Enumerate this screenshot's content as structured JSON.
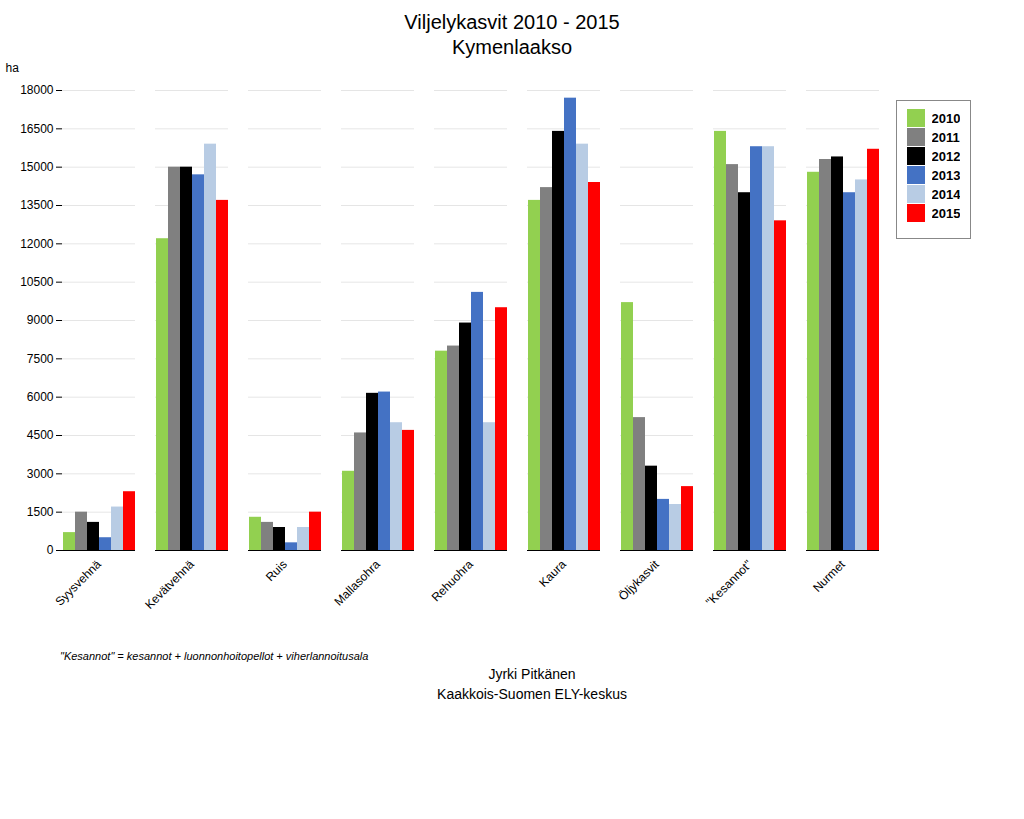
{
  "chart_data": {
    "type": "bar",
    "title": "Viljelykasvit 2010 - 2015\nKymenlaakso",
    "y_label": "ha",
    "categories": [
      "Syysvehnä",
      "Kevätvehnä",
      "Ruis",
      "Mallasohra",
      "Rehuohra",
      "Kaura",
      "Öljykasvit",
      "\"Kesannot\"",
      "Nurmet"
    ],
    "series": [
      {
        "name": "2010",
        "color": "#92D050",
        "values": [
          700,
          12200,
          1300,
          3100,
          7800,
          13700,
          9700,
          16400,
          14800
        ]
      },
      {
        "name": "2011",
        "color": "#808080",
        "values": [
          1500,
          15000,
          1100,
          4600,
          8000,
          14200,
          5200,
          15100,
          15300
        ]
      },
      {
        "name": "2012",
        "color": "#000000",
        "values": [
          1100,
          15000,
          900,
          6150,
          8900,
          16400,
          3300,
          14000,
          15400
        ]
      },
      {
        "name": "2013",
        "color": "#4472C4",
        "values": [
          500,
          14700,
          300,
          6200,
          10100,
          17700,
          2000,
          15800,
          14000
        ]
      },
      {
        "name": "2014",
        "color": "#B8CCE4",
        "values": [
          1700,
          15900,
          900,
          5000,
          5000,
          15900,
          1800,
          15800,
          14500
        ]
      },
      {
        "name": "2015",
        "color": "#FF0000",
        "values": [
          2300,
          13700,
          1500,
          4700,
          9500,
          14400,
          2500,
          12900,
          15700
        ]
      }
    ],
    "ylim": [
      0,
      18000
    ],
    "yticks": [
      0,
      1500,
      3000,
      4500,
      6000,
      7500,
      9000,
      10500,
      12000,
      13500,
      15000,
      16500,
      18000
    ],
    "grid": true,
    "legend": "right",
    "annotations": [
      "\"Kesannot\" = kesannot + luonnonhoitopellot + viherlannoitusala",
      "Jyrki Pitkänen",
      "Kaakkois-Suomen ELY-keskus"
    ]
  }
}
